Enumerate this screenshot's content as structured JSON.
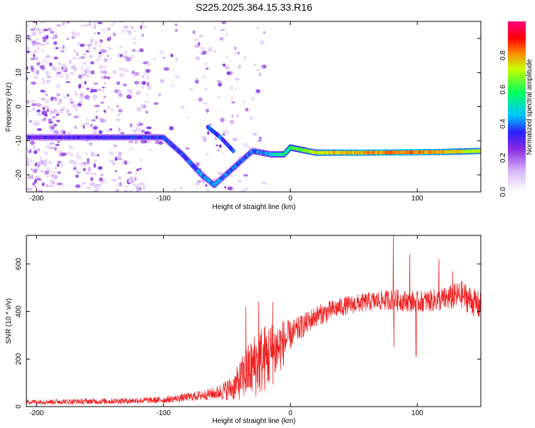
{
  "title": "S225.2025.364.15.33.R16",
  "chart_data": [
    {
      "type": "heatmap",
      "xlabel": "Height of straight line (km)",
      "ylabel": "Frequency (Hz)",
      "xlim": [
        -208,
        150
      ],
      "ylim": [
        -25,
        25
      ],
      "xticks": [
        -200,
        -100,
        0,
        100
      ],
      "yticks": [
        -20,
        -10,
        0,
        10,
        20
      ],
      "colorbar": {
        "label": "Normalized spectral amplitude",
        "range": [
          0,
          1
        ],
        "ticks": [
          "0.0",
          "0.2",
          "0.4",
          "0.6",
          "0.8"
        ],
        "tick_values": [
          0,
          0.2,
          0.4,
          0.6,
          0.8
        ],
        "stops": [
          {
            "v": 0.0,
            "color": "#ffffff"
          },
          {
            "v": 0.12,
            "color": "#d8b8f8"
          },
          {
            "v": 0.25,
            "color": "#8a2be2"
          },
          {
            "v": 0.35,
            "color": "#2a20ff"
          },
          {
            "v": 0.45,
            "color": "#00c8ff"
          },
          {
            "v": 0.58,
            "color": "#00ff60"
          },
          {
            "v": 0.72,
            "color": "#c8ff00"
          },
          {
            "v": 0.82,
            "color": "#ff8000"
          },
          {
            "v": 0.9,
            "color": "#ff0000"
          },
          {
            "v": 1.0,
            "color": "#ff0080"
          }
        ]
      },
      "ridge": [
        {
          "x": -208,
          "y": -9.0
        },
        {
          "x": -150,
          "y": -9.0
        },
        {
          "x": -135,
          "y": -9.0
        },
        {
          "x": -100,
          "y": -9.0
        },
        {
          "x": -85,
          "y": -14.0
        },
        {
          "x": -70,
          "y": -20.0
        },
        {
          "x": -60,
          "y": -23.0
        },
        {
          "x": -30,
          "y": -13.0
        },
        {
          "x": -15,
          "y": -14.0
        },
        {
          "x": -5,
          "y": -14.0
        },
        {
          "x": 0,
          "y": -12.0
        },
        {
          "x": 20,
          "y": -13.5
        },
        {
          "x": 60,
          "y": -13.5
        },
        {
          "x": 120,
          "y": -13.3
        },
        {
          "x": 150,
          "y": -13.0
        }
      ],
      "ridge_amplitude": [
        {
          "x": -208,
          "a": 0.28
        },
        {
          "x": -160,
          "a": 0.32
        },
        {
          "x": -130,
          "a": 0.33
        },
        {
          "x": -100,
          "a": 0.34
        },
        {
          "x": -80,
          "a": 0.36
        },
        {
          "x": -70,
          "a": 0.42
        },
        {
          "x": -55,
          "a": 0.4
        },
        {
          "x": -30,
          "a": 0.38
        },
        {
          "x": -15,
          "a": 0.45
        },
        {
          "x": 0,
          "a": 0.6
        },
        {
          "x": 20,
          "a": 0.72
        },
        {
          "x": 60,
          "a": 0.8
        },
        {
          "x": 100,
          "a": 0.82
        },
        {
          "x": 150,
          "a": 0.7
        }
      ],
      "secondary_branch": [
        {
          "x": -65,
          "y": -6.0
        },
        {
          "x": -55,
          "y": -9.0
        },
        {
          "x": -45,
          "y": -13.0
        }
      ],
      "noise_region_xlim": [
        -208,
        -20
      ]
    },
    {
      "type": "line",
      "xlabel": "Height of straight line (km)",
      "ylabel": "SNR (10 * v/v)",
      "xlim": [
        -208,
        150
      ],
      "ylim": [
        0,
        720
      ],
      "xticks": [
        -200,
        -100,
        0,
        100
      ],
      "yticks": [
        0,
        200,
        400,
        600
      ],
      "series": [
        {
          "name": "SNR",
          "color": "#ee2222",
          "envelope": [
            {
              "x": -208,
              "mean": 20,
              "spread": 10
            },
            {
              "x": -150,
              "mean": 22,
              "spread": 12
            },
            {
              "x": -100,
              "mean": 28,
              "spread": 14
            },
            {
              "x": -80,
              "mean": 40,
              "spread": 18
            },
            {
              "x": -60,
              "mean": 55,
              "spread": 25
            },
            {
              "x": -45,
              "mean": 80,
              "spread": 55
            },
            {
              "x": -35,
              "mean": 140,
              "spread": 110
            },
            {
              "x": -25,
              "mean": 190,
              "spread": 150
            },
            {
              "x": -15,
              "mean": 220,
              "spread": 140
            },
            {
              "x": -5,
              "mean": 270,
              "spread": 100
            },
            {
              "x": 0,
              "mean": 300,
              "spread": 60
            },
            {
              "x": 10,
              "mean": 340,
              "spread": 50
            },
            {
              "x": 20,
              "mean": 380,
              "spread": 45
            },
            {
              "x": 40,
              "mean": 420,
              "spread": 40
            },
            {
              "x": 60,
              "mean": 440,
              "spread": 40
            },
            {
              "x": 80,
              "mean": 450,
              "spread": 45
            },
            {
              "x": 100,
              "mean": 440,
              "spread": 45
            },
            {
              "x": 120,
              "mean": 450,
              "spread": 50
            },
            {
              "x": 135,
              "mean": 470,
              "spread": 60
            },
            {
              "x": 150,
              "mean": 420,
              "spread": 60
            }
          ],
          "spikes": [
            {
              "x": 81,
              "y": 720
            },
            {
              "x": 81.5,
              "y": 250
            },
            {
              "x": 99,
              "y": 210
            },
            {
              "x": 94,
              "y": 640
            },
            {
              "x": 117,
              "y": 620
            },
            {
              "x": 128,
              "y": 570
            },
            {
              "x": -14,
              "y": 440
            },
            {
              "x": -25,
              "y": 440
            },
            {
              "x": -35,
              "y": 420
            }
          ]
        }
      ]
    }
  ]
}
